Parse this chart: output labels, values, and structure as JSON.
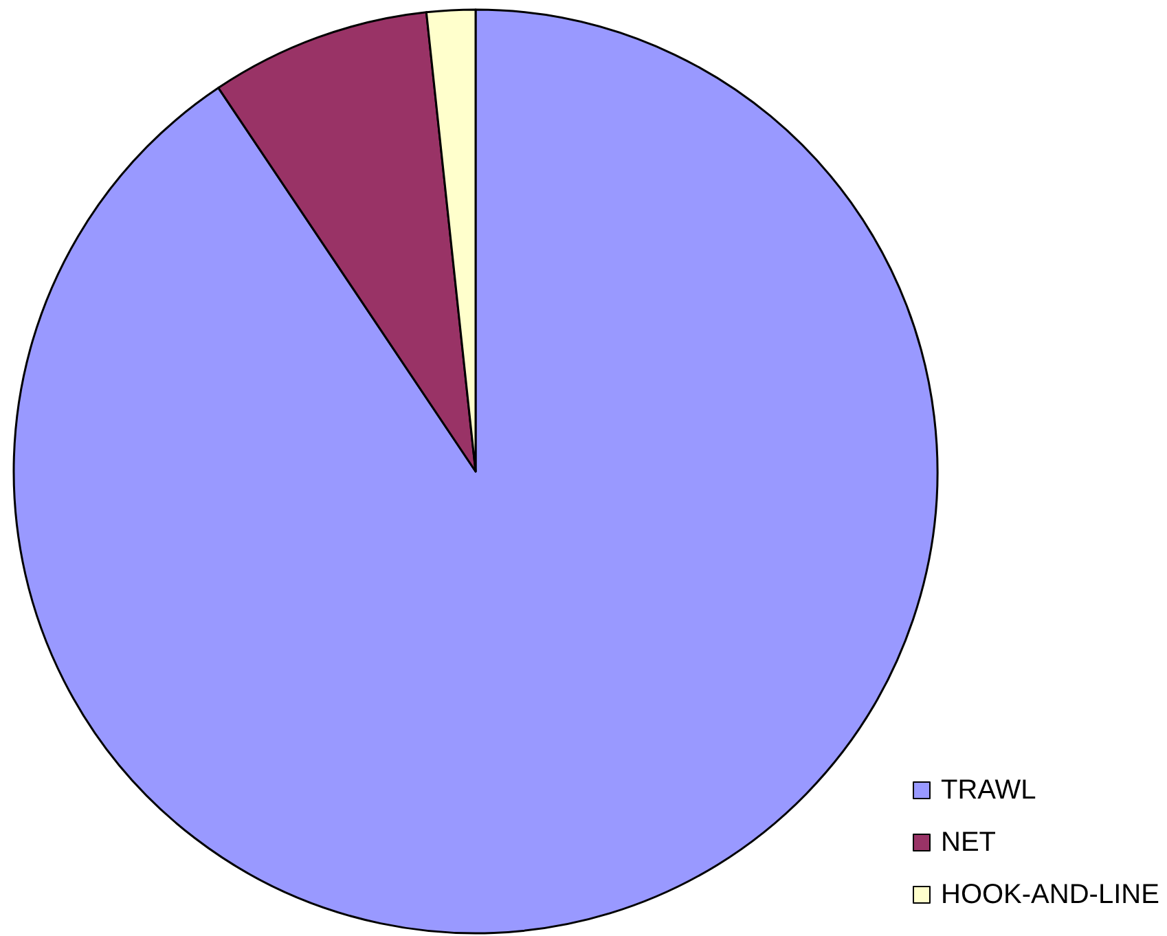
{
  "chart_data": {
    "type": "pie",
    "categories": [
      "TRAWL",
      "NET",
      "HOOK-AND-LINE"
    ],
    "values": [
      90.6,
      7.7,
      1.7
    ],
    "colors": [
      "#9999ff",
      "#993366",
      "#ffffcc"
    ],
    "legend": "bottom right"
  }
}
